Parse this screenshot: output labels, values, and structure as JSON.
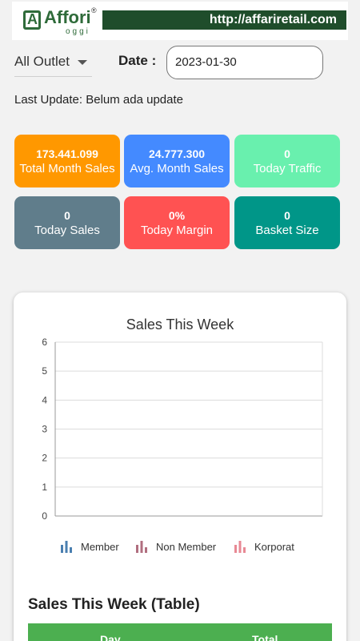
{
  "header": {
    "logo_text": "Affori",
    "logo_mark": "A",
    "logo_sub": "oggi",
    "logo_reg": "®",
    "url": "http://affariretail.com"
  },
  "filters": {
    "outlet_value": "All Outlet",
    "date_label": "Date :",
    "date_value": "2023-01-30"
  },
  "last_update": "Last Update: Belum ada update",
  "tiles": [
    {
      "value": "173.441.099",
      "label": "Total Month Sales",
      "color": "#ff9800"
    },
    {
      "value": "24.777.300",
      "label": "Avg. Month Sales",
      "color": "#448aff"
    },
    {
      "value": "0",
      "label": "Today Traffic",
      "color": "#69f0ae"
    },
    {
      "value": "0",
      "label": "Today Sales",
      "color": "#607d8b"
    },
    {
      "value": "0%",
      "label": "Today Margin",
      "color": "#ff5252"
    },
    {
      "value": "0",
      "label": "Basket Size",
      "color": "#009688"
    }
  ],
  "chart_data": {
    "type": "bar",
    "title": "Sales This Week",
    "categories": [],
    "series": [
      {
        "name": "Member",
        "values": [],
        "color": "#4a7fb0"
      },
      {
        "name": "Non Member",
        "values": [],
        "color": "#b06e7f"
      },
      {
        "name": "Korporat",
        "values": [],
        "color": "#e88994"
      }
    ],
    "ylim": [
      0,
      6
    ],
    "yticks": [
      "0",
      "1",
      "2",
      "3",
      "4",
      "5",
      "6"
    ],
    "grid": true,
    "legend": "bottom"
  },
  "table": {
    "title": "Sales This Week (Table)",
    "columns": [
      "Day",
      "Total"
    ],
    "header_color": "#4caf50"
  }
}
